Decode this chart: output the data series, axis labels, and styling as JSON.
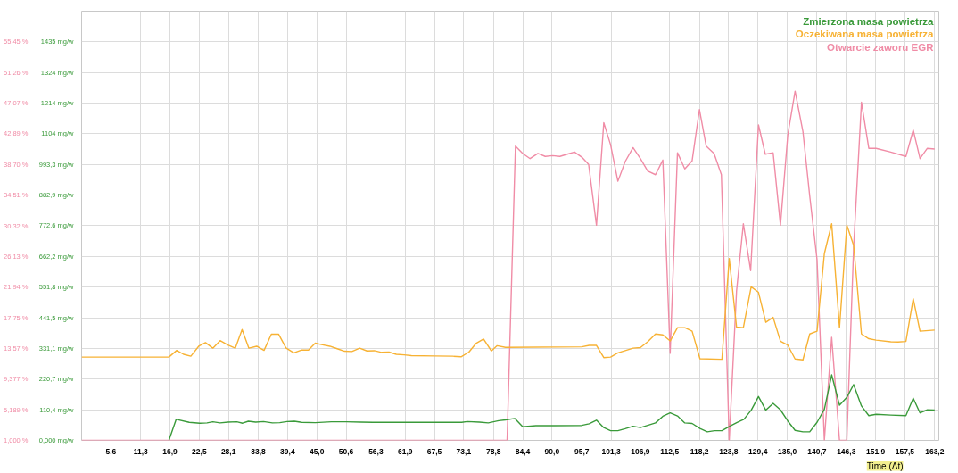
{
  "chart_data": {
    "type": "line",
    "xlabel": "Time (Δt)",
    "xlim": [
      0,
      164
    ],
    "ylim": [
      0,
      1545
    ],
    "y2lim": [
      1,
      59.64
    ],
    "xticks": [
      {
        "value": 5.6,
        "label": "5,6"
      },
      {
        "value": 11.3,
        "label": "11,3"
      },
      {
        "value": 16.9,
        "label": "16,9"
      },
      {
        "value": 22.5,
        "label": "22,5"
      },
      {
        "value": 28.1,
        "label": "28,1"
      },
      {
        "value": 33.8,
        "label": "33,8"
      },
      {
        "value": 39.4,
        "label": "39,4"
      },
      {
        "value": 45.0,
        "label": "45,0"
      },
      {
        "value": 50.6,
        "label": "50,6"
      },
      {
        "value": 56.3,
        "label": "56,3"
      },
      {
        "value": 61.9,
        "label": "61,9"
      },
      {
        "value": 67.5,
        "label": "67,5"
      },
      {
        "value": 73.1,
        "label": "73,1"
      },
      {
        "value": 78.8,
        "label": "78,8"
      },
      {
        "value": 84.4,
        "label": "84,4"
      },
      {
        "value": 90.0,
        "label": "90,0"
      },
      {
        "value": 95.7,
        "label": "95,7"
      },
      {
        "value": 101.3,
        "label": "101,3"
      },
      {
        "value": 106.9,
        "label": "106,9"
      },
      {
        "value": 112.5,
        "label": "112,5"
      },
      {
        "value": 118.2,
        "label": "118,2"
      },
      {
        "value": 123.8,
        "label": "123,8"
      },
      {
        "value": 129.4,
        "label": "129,4"
      },
      {
        "value": 135.0,
        "label": "135,0"
      },
      {
        "value": 140.7,
        "label": "140,7"
      },
      {
        "value": 146.3,
        "label": "146,3"
      },
      {
        "value": 151.9,
        "label": "151,9"
      },
      {
        "value": 157.5,
        "label": "157,5"
      },
      {
        "value": 163.2,
        "label": "163,2"
      }
    ],
    "yticks": [
      {
        "value": 0,
        "label": "0,000 mg/w"
      },
      {
        "value": 110.4,
        "label": "110,4 mg/w"
      },
      {
        "value": 220.7,
        "label": "220,7 mg/w"
      },
      {
        "value": 331.1,
        "label": "331,1 mg/w"
      },
      {
        "value": 441.5,
        "label": "441,5 mg/w"
      },
      {
        "value": 551.8,
        "label": "551,8 mg/w"
      },
      {
        "value": 662.2,
        "label": "662,2 mg/w"
      },
      {
        "value": 772.6,
        "label": "772,6 mg/w"
      },
      {
        "value": 882.9,
        "label": "882,9 mg/w"
      },
      {
        "value": 993.3,
        "label": "993,3 mg/w"
      },
      {
        "value": 1104,
        "label": "1104 mg/w"
      },
      {
        "value": 1214,
        "label": "1214 mg/w"
      },
      {
        "value": 1324,
        "label": "1324 mg/w"
      },
      {
        "value": 1435,
        "label": "1435 mg/w"
      }
    ],
    "y2ticks": [
      {
        "value": 1.0,
        "label": "1,000 %"
      },
      {
        "value": 5.189,
        "label": "5,189 %"
      },
      {
        "value": 9.377,
        "label": "9,377 %"
      },
      {
        "value": 13.57,
        "label": "13,57 %"
      },
      {
        "value": 17.75,
        "label": "17,75 %"
      },
      {
        "value": 21.94,
        "label": "21,94 %"
      },
      {
        "value": 26.13,
        "label": "26,13 %"
      },
      {
        "value": 30.32,
        "label": "30,32 %"
      },
      {
        "value": 34.51,
        "label": "34,51 %"
      },
      {
        "value": 38.7,
        "label": "38,70 %"
      },
      {
        "value": 42.89,
        "label": "42,89 %"
      },
      {
        "value": 47.07,
        "label": "47,07 %"
      },
      {
        "value": 51.26,
        "label": "51,26 %"
      },
      {
        "value": 55.45,
        "label": "55,45 %"
      }
    ],
    "grid": true,
    "legend": "top right",
    "series": [
      {
        "name": "Zmierzona masa powietrza",
        "color": "#3a9a3a",
        "x": [
          16.7,
          18.1,
          20.6,
          22.6,
          24.0,
          25.1,
          26.5,
          28.0,
          29.7,
          30.8,
          31.9,
          33.3,
          34.8,
          36.5,
          37.9,
          39.3,
          40.7,
          42.1,
          44.7,
          47.8,
          50.6,
          53.4,
          55.7,
          72.7,
          73.8,
          76.1,
          77.8,
          79.8,
          81.1,
          82.9,
          84.4,
          86.9,
          90.3,
          95.7,
          97.1,
          98.5,
          99.9,
          101.2,
          102.6,
          104.0,
          105.5,
          106.9,
          108.3,
          109.8,
          111.2,
          112.6,
          114.0,
          115.4,
          116.8,
          118.3,
          119.7,
          121.1,
          122.5,
          124.0,
          125.4,
          126.7,
          128.1,
          129.5,
          130.9,
          132.3,
          133.7,
          135.1,
          136.5,
          138.0,
          139.3,
          140.7,
          142.1,
          143.5,
          145.0,
          146.4,
          147.7,
          149.2,
          150.6,
          152.0,
          154.8,
          157.7,
          159.1,
          160.4,
          161.8,
          163.2
        ],
        "values": [
          0,
          76,
          65,
          62,
          63,
          67,
          63,
          66,
          67,
          62,
          69,
          66,
          68,
          63,
          64,
          68,
          69,
          65,
          64,
          67,
          67,
          66,
          65,
          65,
          68,
          66,
          63,
          71,
          74,
          79,
          49,
          53,
          53,
          54,
          60,
          73,
          46,
          35,
          35,
          42,
          51,
          46,
          54,
          63,
          87,
          99,
          88,
          63,
          61,
          43,
          31,
          35,
          35,
          51,
          65,
          76,
          109,
          158,
          109,
          133,
          110,
          70,
          36,
          31,
          31,
          65,
          112,
          236,
          127,
          155,
          201,
          124,
          89,
          94,
          91,
          89,
          152,
          99,
          110,
          109
        ]
      },
      {
        "name": "Oczekiwana masa powietrza",
        "color": "#f7b234",
        "x": [
          0,
          16.7,
          18.2,
          19.5,
          20.9,
          22.4,
          23.7,
          25.1,
          26.5,
          28.0,
          29.4,
          30.7,
          32.0,
          33.5,
          34.9,
          36.3,
          37.7,
          39.1,
          40.6,
          42.0,
          43.4,
          44.7,
          46.1,
          47.5,
          48.9,
          50.3,
          51.7,
          53.2,
          54.6,
          56.0,
          57.4,
          58.8,
          60.2,
          61.7,
          63.1,
          67.6,
          71.0,
          72.6,
          74.1,
          75.5,
          76.9,
          78.4,
          79.5,
          81.1,
          95.7,
          97.1,
          98.5,
          99.9,
          101.2,
          102.6,
          104.0,
          105.5,
          106.9,
          108.3,
          109.8,
          111.2,
          112.6,
          114.0,
          115.4,
          116.8,
          118.3,
          122.5,
          123.9,
          125.3,
          126.6,
          128.1,
          129.5,
          130.9,
          132.3,
          133.7,
          135.1,
          136.5,
          138.0,
          139.3,
          140.7,
          142.1,
          143.5,
          145.0,
          146.4,
          147.7,
          149.2,
          150.6,
          152.0,
          154.8,
          156.2,
          157.7,
          159.1,
          160.4,
          163.2
        ],
        "values": [
          300,
          300,
          324,
          310,
          303,
          339,
          352,
          332,
          359,
          343,
          332,
          399,
          332,
          339,
          324,
          382,
          382,
          333,
          315,
          325,
          325,
          350,
          344,
          339,
          330,
          321,
          320,
          332,
          322,
          323,
          317,
          318,
          310,
          308,
          305,
          304,
          303,
          301,
          318,
          350,
          365,
          322,
          341,
          335,
          337,
          342,
          342,
          298,
          300,
          315,
          323,
          332,
          334,
          355,
          383,
          380,
          358,
          406,
          406,
          393,
          294,
          292,
          655,
          408,
          406,
          553,
          533,
          425,
          443,
          357,
          343,
          293,
          290,
          383,
          393,
          672,
          780,
          406,
          775,
          702,
          383,
          366,
          361,
          355,
          354,
          356,
          510,
          393,
          397
        ]
      },
      {
        "name": "Otwarcie zaworu EGR",
        "color": "#f08ca6",
        "axis": "y2",
        "x": [
          0,
          81.4,
          83.0,
          84.4,
          85.8,
          87.3,
          88.7,
          90.1,
          91.5,
          92.9,
          94.3,
          95.7,
          97.0,
          98.5,
          99.9,
          101.2,
          102.6,
          104.0,
          105.5,
          106.9,
          108.3,
          109.8,
          111.2,
          112.6,
          114.0,
          115.4,
          116.8,
          118.2,
          119.5,
          121.0,
          122.4,
          123.9,
          125.3,
          126.6,
          128.0,
          129.5,
          130.8,
          132.3,
          133.7,
          135.1,
          136.5,
          138.0,
          139.3,
          140.7,
          142.1,
          143.5,
          145.0,
          146.4,
          147.7,
          149.2,
          150.6,
          152.0,
          154.8,
          157.7,
          159.1,
          160.4,
          161.8,
          163.2
        ],
        "values": [
          1.0,
          1.0,
          41.2,
          40.2,
          39.5,
          40.2,
          39.8,
          39.9,
          39.8,
          40.1,
          40.4,
          39.7,
          38.7,
          30.4,
          44.4,
          41.4,
          36.4,
          39.1,
          41.0,
          39.5,
          37.8,
          37.3,
          39.3,
          12.9,
          40.3,
          38.1,
          39.2,
          46.2,
          41.2,
          40.2,
          37.3,
          1.0,
          21.4,
          30.6,
          24.2,
          44.1,
          40.1,
          40.3,
          30.4,
          42.7,
          48.7,
          43.2,
          34.4,
          25.7,
          1.0,
          15.1,
          1.0,
          1.0,
          27.4,
          47.2,
          40.9,
          40.9,
          40.4,
          39.8,
          43.4,
          39.5,
          40.9,
          40.8
        ]
      }
    ]
  }
}
